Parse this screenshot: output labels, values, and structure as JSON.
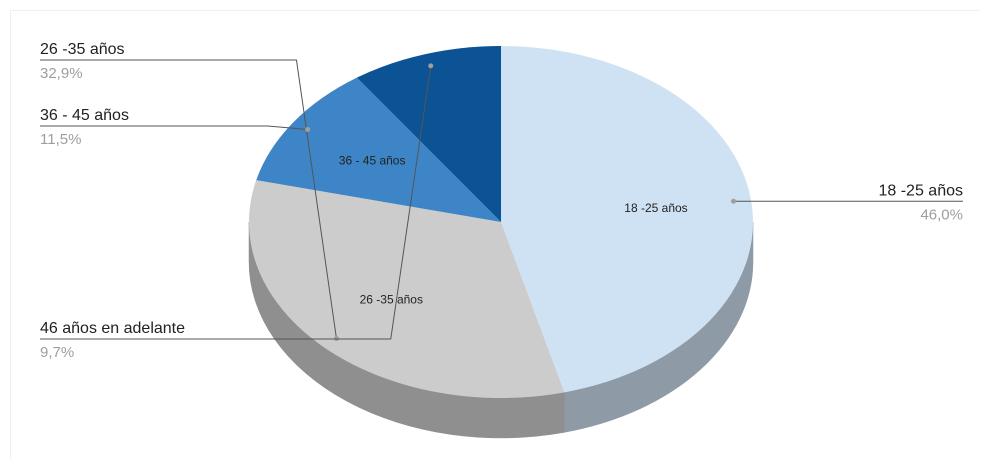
{
  "chart_data": {
    "type": "pie",
    "title": "",
    "three_d": true,
    "legend_position": "callouts",
    "slices": [
      {
        "label": "18 -25 años",
        "value": 46.0,
        "percent_text": "46,0%",
        "color": "#cfe2f3",
        "side_color": "#8e9aa6",
        "inner_label": "18 -25 años",
        "callout_side": "right"
      },
      {
        "label": "26 -35 años",
        "value": 32.9,
        "percent_text": "32,9%",
        "color": "#cccccc",
        "side_color": "#8f8f8f",
        "inner_label": "26 -35 años",
        "callout_side": "left"
      },
      {
        "label": "36 - 45 años",
        "value": 11.5,
        "percent_text": "11,5%",
        "color": "#3d85c6",
        "side_color": "#2b5d8a",
        "inner_label": "36 - 45 años",
        "callout_side": "left"
      },
      {
        "label": "46 años en adelante",
        "value": 9.7,
        "percent_text": "9,7%",
        "color": "#0b5394",
        "side_color": "#083a68",
        "inner_label": "",
        "callout_side": "left"
      }
    ]
  }
}
